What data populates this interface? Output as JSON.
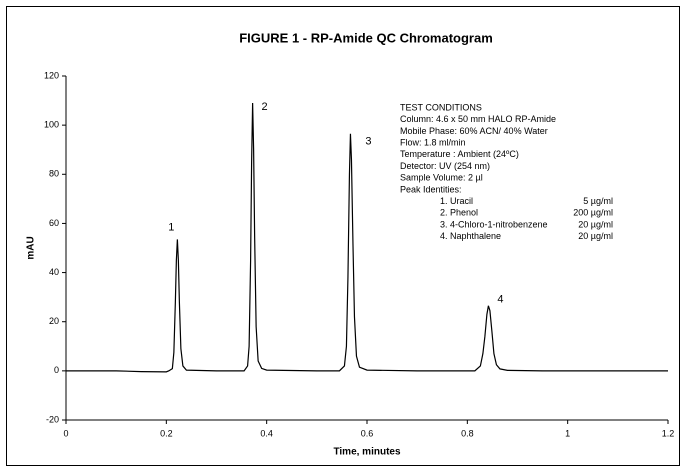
{
  "chart_data": {
    "type": "line",
    "title": "FIGURE 1 - RP-Amide QC Chromatogram",
    "x_label": "Time, minutes",
    "y_label": "mAU",
    "color": "#000000",
    "x": [
      0,
      0.1,
      0.15,
      0.2,
      0.205,
      0.212,
      0.215,
      0.218,
      0.22,
      0.222,
      0.224,
      0.226,
      0.229,
      0.233,
      0.24,
      0.3,
      0.355,
      0.362,
      0.365,
      0.368,
      0.37,
      0.372,
      0.374,
      0.376,
      0.379,
      0.383,
      0.39,
      0.4,
      0.5,
      0.545,
      0.555,
      0.559,
      0.562,
      0.565,
      0.567,
      0.569,
      0.572,
      0.575,
      0.579,
      0.585,
      0.6,
      0.7,
      0.815,
      0.826,
      0.831,
      0.835,
      0.839,
      0.842,
      0.845,
      0.849,
      0.853,
      0.858,
      0.865,
      0.88,
      0.95,
      1.1,
      1.2
    ],
    "values": [
      0,
      0,
      -0.3,
      -0.4,
      0,
      0.9,
      7.5,
      28,
      45,
      53.5,
      45,
      28,
      9,
      2,
      0.3,
      0,
      0,
      2,
      10,
      45,
      85,
      109,
      90,
      55,
      18,
      4,
      1,
      0.3,
      0,
      0,
      2,
      10,
      38,
      80,
      96.5,
      86,
      52,
      22,
      6,
      1.5,
      0.3,
      0,
      0,
      2,
      7,
      14,
      23,
      26.5,
      24.5,
      16,
      7,
      2.5,
      0.8,
      0.2,
      0,
      0,
      0
    ],
    "peak_labels": [
      "1",
      "2",
      "3",
      "4"
    ],
    "xlim": [
      0,
      1.2
    ],
    "xticks": [
      0,
      0.2,
      0.4,
      0.6,
      0.8,
      1,
      1.2
    ],
    "ylim": [
      -20,
      120
    ],
    "yticks": [
      -20,
      0,
      20,
      40,
      60,
      80,
      100,
      120
    ],
    "grid": false
  },
  "test_conditions": {
    "heading": "TEST CONDITIONS",
    "lines": [
      "Column: 4.6 x 50 mm HALO RP-Amide",
      "Mobile Phase: 60% ACN/ 40% Water",
      "Flow: 1.8 ml/min",
      "Temperature : Ambient (24ºC)",
      "Detector: UV (254 nm)",
      "Sample Volume: 2 µl",
      "Peak Identities:"
    ],
    "peaks": [
      {
        "name": "1. Uracil",
        "conc": "5 µg/ml"
      },
      {
        "name": "2. Phenol",
        "conc": "200 µg/ml"
      },
      {
        "name": "3. 4-Chloro-1-nitrobenzene",
        "conc": "20 µg/ml"
      },
      {
        "name": "4. Naphthalene",
        "conc": "20 µg/ml"
      }
    ]
  }
}
